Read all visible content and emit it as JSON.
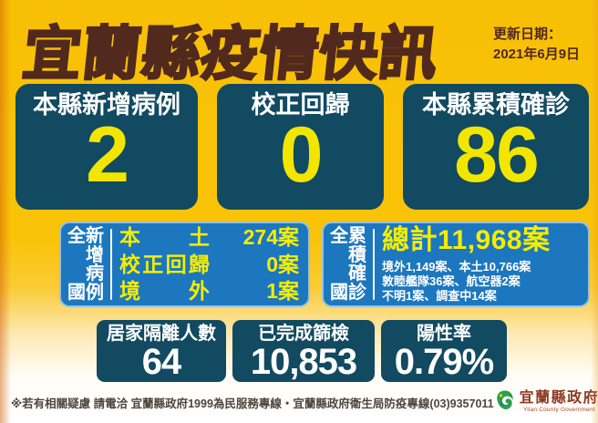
{
  "header": {
    "title": "宜蘭縣疫情快訊",
    "update_label": "更新日期：",
    "update_date": "2021年6月9日"
  },
  "top_stats": [
    {
      "label": "本縣新增病例",
      "value": "2"
    },
    {
      "label": "校正回歸",
      "value": "0"
    },
    {
      "label": "本縣累積確診",
      "value": "86"
    }
  ],
  "national_new": {
    "side_first": "全國",
    "side_second": "新增病例",
    "rows": [
      {
        "term": "本土",
        "value": "274案"
      },
      {
        "term": "校正回歸",
        "value": "0案"
      },
      {
        "term": "境外",
        "value": "1案"
      }
    ]
  },
  "national_total": {
    "side_first": "全國",
    "side_second": "累積確診",
    "total": "總計11,968案",
    "details": [
      "境外1,149案、本土10,766案",
      "敦睦艦隊36案、航空器2案",
      "不明1案、調查中14案"
    ]
  },
  "bottom_stats": [
    {
      "label": "居家隔離人數",
      "value": "64"
    },
    {
      "label": "已完成篩檢",
      "value": "10,853"
    },
    {
      "label": "陽性率",
      "value": "0.79%"
    }
  ],
  "footer": {
    "notice": "※若有相關疑慮 請電洽 宜蘭縣政府1999為民服務專線・宜蘭縣政府衛生局防疫專線(03)9357011",
    "logo_title": "宜蘭縣政府",
    "logo_subtitle": "Yilan County Government"
  },
  "colors": {
    "background_yellow": "#F9C307",
    "box_teal": "#114A61",
    "panel_blue": "#1C77BE",
    "number_yellow": "#F2E600",
    "title_maroon": "#51291D",
    "logo_red": "#8E3A24"
  }
}
